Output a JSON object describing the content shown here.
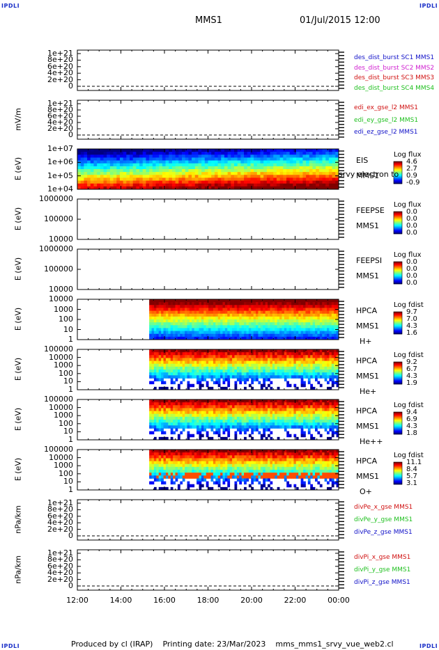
{
  "corners": {
    "label": "IPDLI"
  },
  "header": {
    "mission": "MMS1",
    "datetime": "01/Jul/2015 12:00"
  },
  "footer": {
    "text": "Produced by cl (IRAP)    Printing date: 23/Mar/2023    mms_mms1_srvy_vue_web2.cl"
  },
  "x_ticks": [
    "12:00",
    "14:00",
    "16:00",
    "18:00",
    "20:00",
    "22:00",
    "00:00"
  ],
  "colors": {
    "blue": "#1010c8",
    "magenta": "#d020d0",
    "red": "#d01010",
    "green": "#20c020",
    "axis": "#000000"
  },
  "chart_data": [
    {
      "type": "line",
      "ylabel": "",
      "yticks": [
        "1e+21",
        "8e+20",
        "6e+20",
        "4e+20",
        "2e+20",
        "0"
      ],
      "ylim": [
        0,
        1e+21
      ],
      "series": [
        {
          "name": "des_dist_burst SC1 MMS1",
          "color": "#1010c8",
          "values": [
            0,
            0
          ]
        },
        {
          "name": "des_dist_burst SC2 MMS2",
          "color": "#d020d0",
          "values": [
            0,
            0
          ]
        },
        {
          "name": "des_dist_burst SC3 MMS3",
          "color": "#d01010",
          "values": [
            0,
            0
          ]
        },
        {
          "name": "des_dist_burst SC4 MMS4",
          "color": "#20c020",
          "values": [
            0,
            0
          ]
        }
      ]
    },
    {
      "type": "line",
      "ylabel": "mV/m",
      "yticks": [
        "1e+21",
        "8e+20",
        "6e+20",
        "4e+20",
        "2e+20",
        "0"
      ],
      "ylim": [
        0,
        1e+21
      ],
      "series": [
        {
          "name": "edi_ex_gse_l2 MMS1",
          "color": "#d01010",
          "values": [
            0,
            0
          ]
        },
        {
          "name": "edi_ey_gse_l2 MMS1",
          "color": "#20c020",
          "values": [
            0,
            0
          ]
        },
        {
          "name": "edi_ez_gse_l2 MMS1",
          "color": "#1010c8",
          "values": [
            0,
            0
          ]
        }
      ]
    },
    {
      "type": "heatmap",
      "ylabel": "E (eV)",
      "yticks": [
        "1e+07",
        "1e+06",
        "1e+05",
        "1e+04"
      ],
      "side": [
        "EIS",
        "MMS1"
      ],
      "overlay_text": "srvy electron to",
      "colorbar_title": "Log flux",
      "colorbar_ticks": [
        "4.6",
        "2.7",
        "0.9",
        "-0.9"
      ],
      "x_start_hour": 12.0
    },
    {
      "type": "heatmap",
      "ylabel": "E (eV)",
      "yticks": [
        "1000000",
        "100000",
        "10000"
      ],
      "side": [
        "FEEPSE",
        "MMS1"
      ],
      "colorbar_title": "Log flux",
      "colorbar_ticks": [
        "0.0",
        "0.0",
        "0.0",
        "0.0"
      ]
    },
    {
      "type": "heatmap",
      "ylabel": "E (eV)",
      "yticks": [
        "1000000",
        "100000",
        "10000"
      ],
      "side": [
        "FEEPSI",
        "MMS1"
      ],
      "colorbar_title": "Log flux",
      "colorbar_ticks": [
        "0.0",
        "0.0",
        "0.0",
        "0.0"
      ]
    },
    {
      "type": "heatmap",
      "ylabel": "E (eV)",
      "yticks": [
        "10000",
        "1000",
        "100",
        "10",
        "1"
      ],
      "side": [
        "HPCA",
        "MMS1",
        "H+"
      ],
      "colorbar_title": "Log fdist",
      "colorbar_ticks": [
        "9.7",
        "7.0",
        "4.3",
        "1.6"
      ],
      "x_start_hour": 15.3
    },
    {
      "type": "heatmap",
      "ylabel": "E (eV)",
      "yticks": [
        "100000",
        "10000",
        "1000",
        "100",
        "10",
        "1"
      ],
      "side": [
        "HPCA",
        "MMS1",
        "He+"
      ],
      "colorbar_title": "Log fdist",
      "colorbar_ticks": [
        "9.2",
        "6.7",
        "4.3",
        "1.9"
      ],
      "x_start_hour": 15.3
    },
    {
      "type": "heatmap",
      "ylabel": "E (eV)",
      "yticks": [
        "100000",
        "10000",
        "1000",
        "100",
        "10",
        "1"
      ],
      "side": [
        "HPCA",
        "MMS1",
        "He++"
      ],
      "colorbar_title": "Log fdist",
      "colorbar_ticks": [
        "9.4",
        "6.9",
        "4.3",
        "1.8"
      ],
      "x_start_hour": 15.3
    },
    {
      "type": "heatmap",
      "ylabel": "E (eV)",
      "yticks": [
        "100000",
        "10000",
        "1000",
        "100",
        "10",
        "1"
      ],
      "side": [
        "HPCA",
        "MMS1",
        "O+"
      ],
      "colorbar_title": "Log fdist",
      "colorbar_ticks": [
        "11.1",
        "8.4",
        "5.7",
        "3.1"
      ],
      "x_start_hour": 15.3
    },
    {
      "type": "line",
      "ylabel": "nPa/km",
      "yticks": [
        "1e+21",
        "8e+20",
        "6e+20",
        "4e+20",
        "2e+20",
        "0"
      ],
      "ylim": [
        0,
        1e+21
      ],
      "series": [
        {
          "name": "divPe_x_gse MMS1",
          "color": "#d01010",
          "values": [
            0,
            0
          ]
        },
        {
          "name": "divPe_y_gse MMS1",
          "color": "#20c020",
          "values": [
            0,
            0
          ]
        },
        {
          "name": "divPe_z_gse MMS1",
          "color": "#1010c8",
          "values": [
            0,
            0
          ]
        }
      ]
    },
    {
      "type": "line",
      "ylabel": "nPa/km",
      "yticks": [
        "1e+21",
        "8e+20",
        "6e+20",
        "4e+20",
        "2e+20",
        "0"
      ],
      "ylim": [
        0,
        1e+21
      ],
      "series": [
        {
          "name": "divPi_x_gse MMS1",
          "color": "#d01010",
          "values": [
            0,
            0
          ]
        },
        {
          "name": "divPi_y_gse MMS1",
          "color": "#20c020",
          "values": [
            0,
            0
          ]
        },
        {
          "name": "divPi_z_gse MMS1",
          "color": "#1010c8",
          "values": [
            0,
            0
          ]
        }
      ]
    }
  ]
}
